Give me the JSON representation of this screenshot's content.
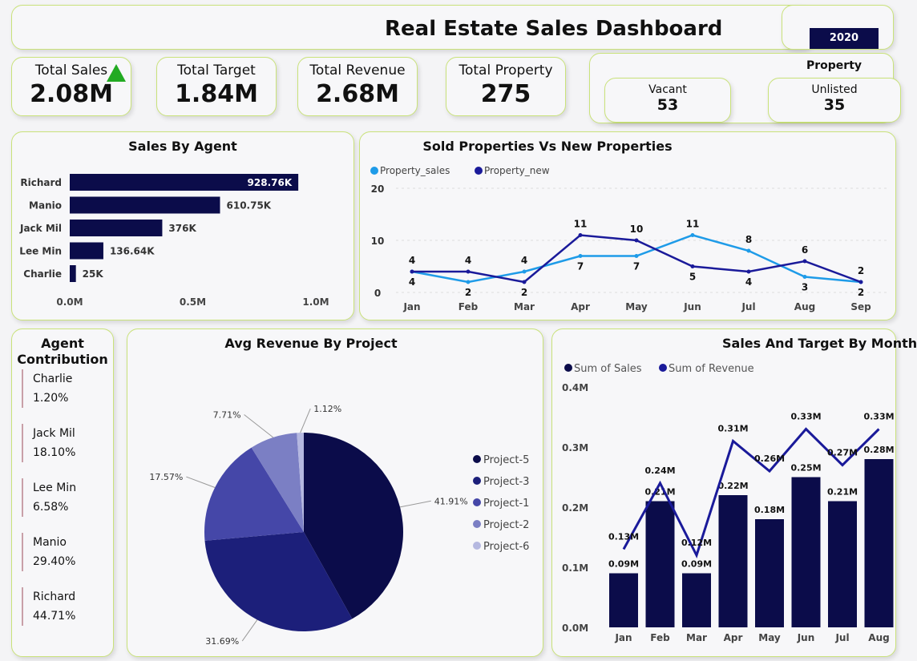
{
  "header": {
    "title": "Real Estate Sales Dashboard",
    "year": "2020"
  },
  "kpis": [
    {
      "label": "Total Sales",
      "value": "2.08M",
      "icon": "triangle-up-icon"
    },
    {
      "label": "Total Target",
      "value": "1.84M"
    },
    {
      "label": "Total Revenue",
      "value": "2.68M"
    },
    {
      "label": "Total Property",
      "value": "275"
    }
  ],
  "property": {
    "title": "Property",
    "items": [
      {
        "label": "Vacant",
        "value": "53"
      },
      {
        "label": "Unlisted",
        "value": "35"
      }
    ]
  },
  "colors": {
    "accent": "#c9e27a",
    "navy": "#0b0c4a",
    "light_blue": "#1e9be8",
    "revenue_line": "#1a1a9a",
    "up": "#22aa22"
  },
  "chart_data": [
    {
      "type": "bar",
      "title": "Sales By Agent",
      "categories": [
        "Richard",
        "Manio",
        "Jack Mil",
        "Lee Min",
        "Charlie"
      ],
      "values": [
        928760,
        610750,
        376000,
        136640,
        25000
      ],
      "labels": [
        "928.76K",
        "610.75K",
        "376K",
        "136.64K",
        "25K"
      ],
      "xticks": [
        "0.0M",
        "0.5M",
        "1.0M"
      ],
      "xlim": [
        0,
        1000000
      ]
    },
    {
      "type": "line",
      "title": "Sold Properties Vs New Properties",
      "categories": [
        "Jan",
        "Feb",
        "Mar",
        "Apr",
        "May",
        "Jun",
        "Jul",
        "Aug",
        "Sep"
      ],
      "series": [
        {
          "name": "Property_sales",
          "values": [
            4,
            2,
            4,
            7,
            7,
            11,
            8,
            3,
            2
          ]
        },
        {
          "name": "Property_new",
          "values": [
            4,
            4,
            2,
            11,
            10,
            5,
            4,
            6,
            2
          ]
        }
      ],
      "yticks": [
        "0",
        "10",
        "20"
      ],
      "ylim": [
        0,
        20
      ]
    },
    {
      "type": "pie",
      "title": "Avg Revenue By Project",
      "categories": [
        "Project-5",
        "Project-3",
        "Project-1",
        "Project-2",
        "Project-6"
      ],
      "values": [
        41.91,
        31.69,
        17.57,
        7.71,
        1.12
      ],
      "labels": [
        "41.91%",
        "31.69%",
        "17.57%",
        "7.71%",
        "1.12%"
      ]
    },
    {
      "type": "bar",
      "title": "Sales And Target By Month",
      "categories": [
        "Jan",
        "Feb",
        "Mar",
        "Apr",
        "May",
        "Jun",
        "Jul",
        "Aug"
      ],
      "series": [
        {
          "name": "Sum of Sales",
          "values": [
            0.09,
            0.21,
            0.09,
            0.22,
            0.18,
            0.25,
            0.21,
            0.28
          ],
          "labels": [
            "0.09M",
            "0.21M",
            "0.09M",
            "0.22M",
            "0.18M",
            "0.25M",
            "0.21M",
            "0.28M"
          ]
        },
        {
          "name": "Sum of Revenue",
          "values": [
            0.13,
            0.24,
            0.12,
            0.31,
            0.26,
            0.33,
            0.27,
            0.33
          ],
          "labels": [
            "0.13M",
            "0.24M",
            "0.12M",
            "0.31M",
            "0.26M",
            "0.33M",
            "0.27M",
            "0.33M"
          ]
        }
      ],
      "yticks": [
        "0.0M",
        "0.1M",
        "0.2M",
        "0.3M",
        "0.4M"
      ],
      "ylim": [
        0,
        0.4
      ]
    }
  ],
  "agent_contribution": {
    "title": "Agent Contribution",
    "items": [
      {
        "name": "Charlie",
        "pct": "1.20%"
      },
      {
        "name": "Jack Mil",
        "pct": "18.10%"
      },
      {
        "name": "Lee Min",
        "pct": "6.58%"
      },
      {
        "name": "Manio",
        "pct": "29.40%"
      },
      {
        "name": "Richard",
        "pct": "44.71%"
      }
    ]
  }
}
